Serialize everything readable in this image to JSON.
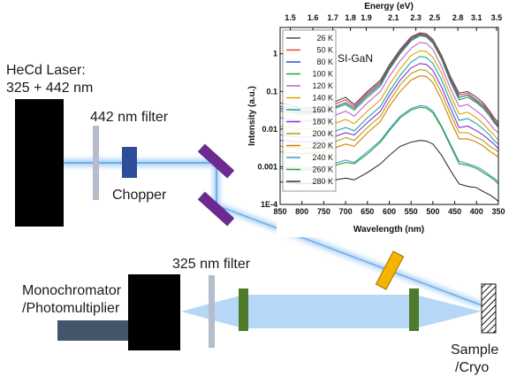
{
  "labels": {
    "laser_line1": "HeCd Laser:",
    "laser_line2": "325 + 442 nm",
    "filter442": "442 nm filter",
    "chopper": "Chopper",
    "filter325": "325 nm filter",
    "mono_line1": "Monochromator",
    "mono_line2": "/Photomultiplier",
    "sample_line1": "Sample",
    "sample_line2": "/Cryo"
  },
  "colors": {
    "beam": "#9ec9f2",
    "laser_box": "#000000",
    "filter": "#b5bccb",
    "chopper": "#2c4e9a",
    "mirror": "#6a2a90",
    "prism": "#f5b400",
    "lens": "#4f7a2c",
    "detector_tube": "#44546a"
  },
  "chart_data": {
    "type": "line",
    "title": "",
    "annotation": "SI-GaN",
    "xlabel": "Wavelength (nm)",
    "x2label": "Energy (eV)",
    "ylabel": "Intensity (a.u.)",
    "xlim": [
      850,
      350
    ],
    "ylim": [
      0.0001,
      5
    ],
    "yscale": "log",
    "x_ticks": [
      "850",
      "800",
      "750",
      "700",
      "650",
      "600",
      "550",
      "500",
      "450",
      "400",
      "350"
    ],
    "x2_ticks": [
      {
        "label": "1.5",
        "wavelength": 826.6
      },
      {
        "label": "1.6",
        "wavelength": 774.9
      },
      {
        "label": "1.7",
        "wavelength": 729.3
      },
      {
        "label": "1.8",
        "wavelength": 688.8
      },
      {
        "label": "1.9",
        "wavelength": 652.6
      },
      {
        "label": "2.1",
        "wavelength": 590.4
      },
      {
        "label": "2.3",
        "wavelength": 539.1
      },
      {
        "label": "2.5",
        "wavelength": 495.9
      },
      {
        "label": "2.8",
        "wavelength": 442.8
      },
      {
        "label": "3.1",
        "wavelength": 400.0
      },
      {
        "label": "3.5",
        "wavelength": 354.2
      }
    ],
    "y_ticks": [
      {
        "label": "1",
        "value": 1
      },
      {
        "label": "0.1",
        "value": 0.1
      },
      {
        "label": "0.01",
        "value": 0.01
      },
      {
        "label": "0.001",
        "value": 0.001
      },
      {
        "label": "1E-4",
        "value": 0.0001
      }
    ],
    "legend_position": "top-left",
    "x": [
      850,
      800,
      750,
      700,
      680,
      650,
      620,
      600,
      575,
      550,
      530,
      515,
      500,
      480,
      460,
      440,
      420,
      400,
      385,
      370,
      360,
      350
    ],
    "series": [
      {
        "name": "26 K",
        "color": "#4d4d4d",
        "values": [
          0.05,
          0.035,
          0.04,
          0.07,
          0.045,
          0.1,
          0.2,
          0.5,
          1.3,
          2.8,
          3.6,
          3.4,
          2.4,
          0.9,
          0.25,
          0.09,
          0.1,
          0.07,
          0.05,
          0.03,
          0.02,
          0.015
        ]
      },
      {
        "name": "50 K",
        "color": "#e2453c",
        "values": [
          0.04,
          0.03,
          0.035,
          0.06,
          0.04,
          0.09,
          0.18,
          0.45,
          1.2,
          2.6,
          3.4,
          3.2,
          2.2,
          0.8,
          0.22,
          0.08,
          0.09,
          0.06,
          0.045,
          0.028,
          0.018,
          0.013
        ]
      },
      {
        "name": "80 K",
        "color": "#2f4fd8",
        "values": [
          0.035,
          0.028,
          0.03,
          0.05,
          0.036,
          0.08,
          0.16,
          0.42,
          1.1,
          2.4,
          3.2,
          3.0,
          2.0,
          0.75,
          0.2,
          0.07,
          0.08,
          0.055,
          0.04,
          0.025,
          0.016,
          0.012
        ]
      },
      {
        "name": "100 K",
        "color": "#2aa02a",
        "values": [
          0.03,
          0.025,
          0.028,
          0.045,
          0.032,
          0.07,
          0.14,
          0.38,
          1.0,
          2.2,
          3.0,
          2.8,
          1.9,
          0.7,
          0.18,
          0.06,
          0.07,
          0.05,
          0.036,
          0.022,
          0.015,
          0.011
        ]
      },
      {
        "name": "120 K",
        "color": "#c060d0",
        "values": [
          0.02,
          0.016,
          0.018,
          0.03,
          0.022,
          0.05,
          0.1,
          0.25,
          0.65,
          1.4,
          2.0,
          1.9,
          1.3,
          0.45,
          0.12,
          0.04,
          0.045,
          0.03,
          0.022,
          0.014,
          0.01,
          0.008
        ]
      },
      {
        "name": "140 K",
        "color": "#e0a000",
        "values": [
          0.012,
          0.01,
          0.011,
          0.018,
          0.014,
          0.03,
          0.06,
          0.15,
          0.4,
          0.9,
          1.2,
          1.15,
          0.8,
          0.3,
          0.08,
          0.025,
          0.028,
          0.02,
          0.014,
          0.009,
          0.007,
          0.005
        ]
      },
      {
        "name": "160 K",
        "color": "#1aa5a5",
        "values": [
          0.007,
          0.006,
          0.007,
          0.011,
          0.009,
          0.02,
          0.04,
          0.1,
          0.27,
          0.6,
          0.85,
          0.8,
          0.55,
          0.2,
          0.055,
          0.017,
          0.019,
          0.014,
          0.01,
          0.007,
          0.005,
          0.004
        ]
      },
      {
        "name": "180 K",
        "color": "#8a2be2",
        "values": [
          0.005,
          0.0045,
          0.005,
          0.008,
          0.007,
          0.015,
          0.03,
          0.075,
          0.2,
          0.42,
          0.55,
          0.52,
          0.36,
          0.13,
          0.036,
          0.011,
          0.012,
          0.009,
          0.007,
          0.005,
          0.004,
          0.003
        ]
      },
      {
        "name": "200 K",
        "color": "#b0a000",
        "values": [
          0.0035,
          0.003,
          0.0035,
          0.006,
          0.005,
          0.011,
          0.022,
          0.055,
          0.15,
          0.3,
          0.38,
          0.36,
          0.25,
          0.09,
          0.025,
          0.008,
          0.008,
          0.006,
          0.005,
          0.0035,
          0.003,
          0.0025
        ]
      },
      {
        "name": "220 K",
        "color": "#d87a00",
        "values": [
          0.0025,
          0.0022,
          0.0025,
          0.004,
          0.0035,
          0.008,
          0.016,
          0.04,
          0.1,
          0.2,
          0.26,
          0.25,
          0.17,
          0.06,
          0.017,
          0.0055,
          0.0055,
          0.0045,
          0.0036,
          0.0026,
          0.0022,
          0.0018
        ]
      },
      {
        "name": "240 K",
        "color": "#2fa0c8",
        "values": [
          0.001,
          0.0009,
          0.001,
          0.0015,
          0.0013,
          0.0025,
          0.005,
          0.01,
          0.022,
          0.035,
          0.042,
          0.04,
          0.03,
          0.012,
          0.004,
          0.0014,
          0.0012,
          0.001,
          0.0008,
          0.0006,
          0.0005,
          0.0004
        ]
      },
      {
        "name": "260 K",
        "color": "#33a02c",
        "values": [
          0.0009,
          0.0008,
          0.0009,
          0.0013,
          0.0012,
          0.0022,
          0.0045,
          0.009,
          0.02,
          0.032,
          0.038,
          0.036,
          0.027,
          0.011,
          0.0036,
          0.0012,
          0.0011,
          0.0009,
          0.0007,
          0.00055,
          0.00045,
          0.00035
        ]
      },
      {
        "name": "280 K",
        "color": "#333333",
        "values": [
          0.0004,
          0.00035,
          0.0004,
          0.0005,
          0.00045,
          0.0007,
          0.0012,
          0.002,
          0.0035,
          0.0045,
          0.005,
          0.0048,
          0.004,
          0.002,
          0.0008,
          0.00035,
          0.0003,
          0.00028,
          0.00022,
          0.00018,
          0.00015,
          0.00012
        ]
      }
    ]
  }
}
